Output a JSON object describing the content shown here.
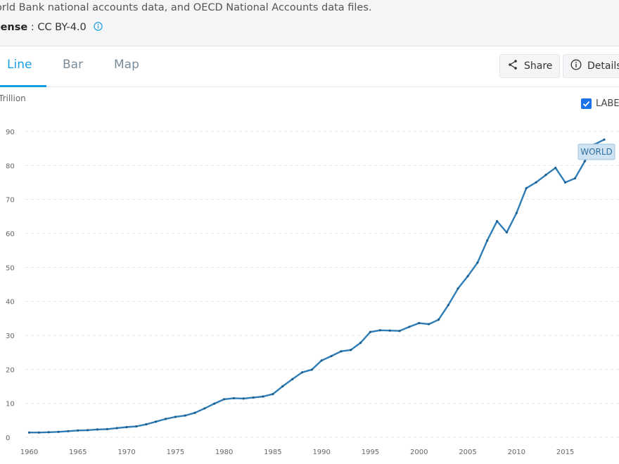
{
  "source": {
    "text": "orld Bank national accounts data, and OECD National Accounts data files.",
    "license_label": "cense",
    "license_value": " : CC BY-4.0"
  },
  "tabs": [
    {
      "label": "Line",
      "active": true
    },
    {
      "label": "Bar",
      "active": false
    },
    {
      "label": "Map",
      "active": false
    }
  ],
  "toolbar": {
    "share_label": "Share",
    "details_label": "Details"
  },
  "labels_toggle": {
    "label": "LABE",
    "checked": true
  },
  "colors": {
    "accent": "#1a9ee0",
    "line": "#2f7db6",
    "checkbox": "#1a73e8"
  },
  "chart_data": {
    "type": "line",
    "unit": "Trillion",
    "ylim": [
      0,
      90
    ],
    "yticks": [
      "0",
      "10",
      "20",
      "30",
      "40",
      "50",
      "60",
      "70",
      "80",
      "90"
    ],
    "xlim": [
      1960,
      2019
    ],
    "xticks": [
      "1960",
      "1965",
      "1970",
      "1975",
      "1980",
      "1985",
      "1990",
      "1995",
      "2000",
      "2005",
      "2010",
      "2015"
    ],
    "grid": true,
    "series": [
      {
        "name": "WORLD",
        "x": [
          1960,
          1961,
          1962,
          1963,
          1964,
          1965,
          1966,
          1967,
          1968,
          1969,
          1970,
          1971,
          1972,
          1973,
          1974,
          1975,
          1976,
          1977,
          1978,
          1979,
          1980,
          1981,
          1982,
          1983,
          1984,
          1985,
          1986,
          1987,
          1988,
          1989,
          1990,
          1991,
          1992,
          1993,
          1994,
          1995,
          1996,
          1997,
          1998,
          1999,
          2000,
          2001,
          2002,
          2003,
          2004,
          2005,
          2006,
          2007,
          2008,
          2009,
          2010,
          2011,
          2012,
          2013,
          2014,
          2015,
          2016,
          2017,
          2018,
          2019
        ],
        "values": [
          1.4,
          1.4,
          1.5,
          1.6,
          1.8,
          2.0,
          2.1,
          2.3,
          2.4,
          2.7,
          3.0,
          3.2,
          3.8,
          4.6,
          5.4,
          6.0,
          6.4,
          7.2,
          8.5,
          9.9,
          11.2,
          11.5,
          11.4,
          11.7,
          12.0,
          12.7,
          15.0,
          17.1,
          19.1,
          19.9,
          22.6,
          23.9,
          25.3,
          25.7,
          27.8,
          31.0,
          31.5,
          31.4,
          31.3,
          32.5,
          33.6,
          33.3,
          34.6,
          38.9,
          43.8,
          47.4,
          51.4,
          57.9,
          63.6,
          60.3,
          66.0,
          73.3,
          75.0,
          77.2,
          79.3,
          75.0,
          76.2,
          81.2,
          86.2,
          87.6
        ]
      }
    ]
  }
}
